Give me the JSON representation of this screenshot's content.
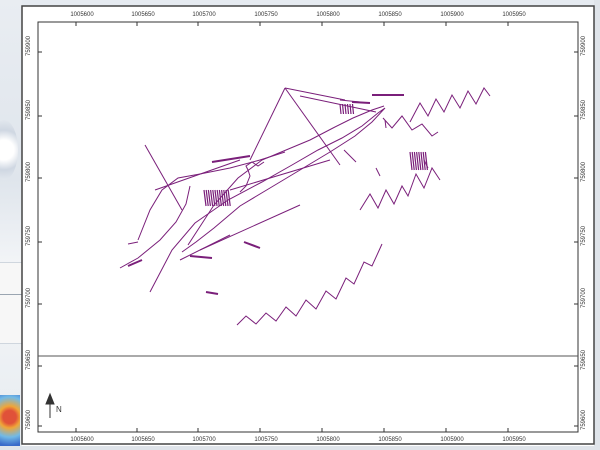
{
  "map": {
    "x_ticks_top": [
      "1005600",
      "1005650",
      "1005700",
      "1005750",
      "1005800",
      "1005850",
      "1005900",
      "1005950"
    ],
    "x_ticks_bottom": [
      "1005600",
      "1005650",
      "1005700",
      "1005750",
      "1005800",
      "1005850",
      "1005900",
      "1005950"
    ],
    "y_ticks_left": [
      "759900",
      "759850",
      "759800",
      "759750",
      "759700",
      "759650",
      "759600"
    ],
    "y_ticks_right": [
      "759900",
      "759850",
      "759800",
      "759750",
      "759700",
      "759650",
      "759600"
    ],
    "north_arrow_label": "N",
    "track_color": "#7a1f7a",
    "frame_color": "#333333"
  }
}
